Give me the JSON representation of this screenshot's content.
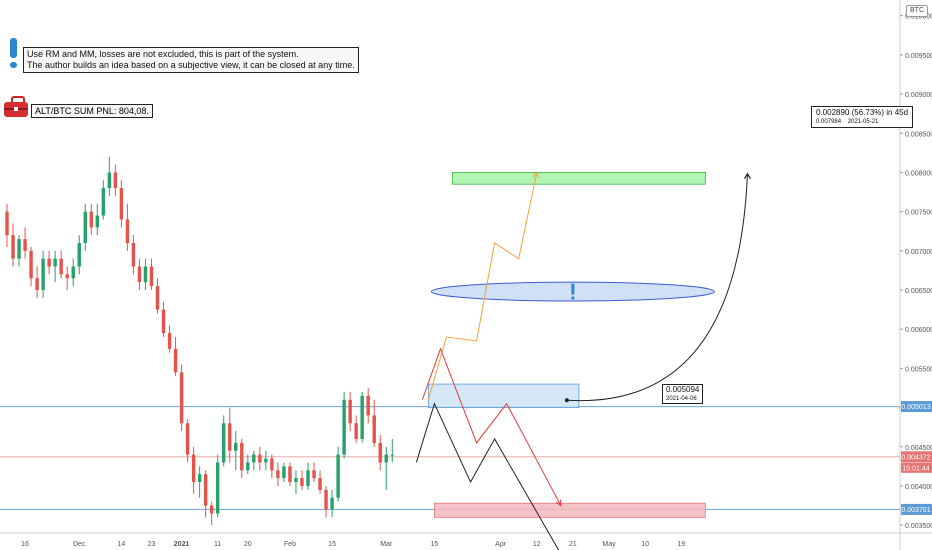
{
  "chart_data": {
    "type": "candlestick",
    "symbol": "BTC",
    "y_range": [
      0.0034,
      0.0102
    ],
    "y_ticks": [
      "0.010000",
      "0.009500",
      "0.009000",
      "0.008500",
      "0.008000",
      "0.007500",
      "0.007000",
      "0.006500",
      "0.006000",
      "0.005500",
      "0.005000",
      "0.004500",
      "0.004000",
      "0.003500"
    ],
    "x_ticks": [
      "16",
      "Dec",
      "14",
      "23",
      "2021",
      "11",
      "20",
      "Feb",
      "15",
      "Mar",
      "15",
      "Apr",
      "12",
      "21",
      "May",
      "10",
      "19"
    ],
    "x_tick_index": [
      3,
      12,
      19,
      24,
      29,
      35,
      40,
      47,
      54,
      63,
      71,
      82,
      88,
      94,
      100,
      106,
      112
    ],
    "candles": [
      [
        0.0075,
        0.0076,
        0.00705,
        0.0072
      ],
      [
        0.0072,
        0.00735,
        0.0068,
        0.0069
      ],
      [
        0.0069,
        0.0072,
        0.0068,
        0.00715
      ],
      [
        0.00715,
        0.0073,
        0.0069,
        0.007
      ],
      [
        0.007,
        0.00705,
        0.00655,
        0.00665
      ],
      [
        0.00665,
        0.0068,
        0.0064,
        0.0065
      ],
      [
        0.0065,
        0.007,
        0.0064,
        0.0069
      ],
      [
        0.0069,
        0.007,
        0.0067,
        0.0068
      ],
      [
        0.0068,
        0.007,
        0.0066,
        0.0069
      ],
      [
        0.0069,
        0.007,
        0.00665,
        0.0067
      ],
      [
        0.0067,
        0.0068,
        0.0065,
        0.00665
      ],
      [
        0.00665,
        0.0069,
        0.00655,
        0.0068
      ],
      [
        0.0068,
        0.0072,
        0.0067,
        0.0071
      ],
      [
        0.0071,
        0.0076,
        0.007,
        0.0075
      ],
      [
        0.0075,
        0.0076,
        0.0072,
        0.0073
      ],
      [
        0.0073,
        0.0076,
        0.0072,
        0.00745
      ],
      [
        0.00745,
        0.0079,
        0.0074,
        0.0078
      ],
      [
        0.0078,
        0.0082,
        0.0077,
        0.008
      ],
      [
        0.008,
        0.0081,
        0.0077,
        0.0078
      ],
      [
        0.0078,
        0.0079,
        0.0073,
        0.0074
      ],
      [
        0.0074,
        0.0076,
        0.007,
        0.0071
      ],
      [
        0.0071,
        0.0072,
        0.0067,
        0.0068
      ],
      [
        0.0068,
        0.0069,
        0.0065,
        0.0066
      ],
      [
        0.0066,
        0.0069,
        0.0065,
        0.0068
      ],
      [
        0.0068,
        0.0069,
        0.0065,
        0.00655
      ],
      [
        0.00655,
        0.00665,
        0.0062,
        0.00625
      ],
      [
        0.00625,
        0.00635,
        0.0059,
        0.00595
      ],
      [
        0.00595,
        0.00605,
        0.0057,
        0.00575
      ],
      [
        0.00575,
        0.0059,
        0.0054,
        0.00545
      ],
      [
        0.00545,
        0.00555,
        0.0047,
        0.0048
      ],
      [
        0.0048,
        0.00485,
        0.0043,
        0.0044
      ],
      [
        0.0044,
        0.0045,
        0.0039,
        0.00405
      ],
      [
        0.00405,
        0.00425,
        0.00385,
        0.00415
      ],
      [
        0.00415,
        0.0042,
        0.0036,
        0.00375
      ],
      [
        0.00375,
        0.0038,
        0.0035,
        0.00365
      ],
      [
        0.00365,
        0.0044,
        0.0036,
        0.0043
      ],
      [
        0.0043,
        0.0049,
        0.00425,
        0.0048
      ],
      [
        0.0048,
        0.005,
        0.0043,
        0.00445
      ],
      [
        0.00445,
        0.0047,
        0.0042,
        0.00455
      ],
      [
        0.00455,
        0.0046,
        0.0041,
        0.0042
      ],
      [
        0.0042,
        0.0044,
        0.00415,
        0.0043
      ],
      [
        0.0043,
        0.00445,
        0.0042,
        0.0044
      ],
      [
        0.0044,
        0.0045,
        0.0042,
        0.0043
      ],
      [
        0.0043,
        0.00445,
        0.0042,
        0.00435
      ],
      [
        0.00435,
        0.0044,
        0.0041,
        0.0042
      ],
      [
        0.0042,
        0.0043,
        0.004,
        0.0041
      ],
      [
        0.0041,
        0.0043,
        0.00405,
        0.00425
      ],
      [
        0.00425,
        0.0043,
        0.004,
        0.00405
      ],
      [
        0.00405,
        0.0042,
        0.0039,
        0.0041
      ],
      [
        0.0041,
        0.0042,
        0.00395,
        0.004
      ],
      [
        0.004,
        0.0043,
        0.00395,
        0.0042
      ],
      [
        0.0042,
        0.0043,
        0.00405,
        0.0041
      ],
      [
        0.0041,
        0.0042,
        0.0039,
        0.00395
      ],
      [
        0.00395,
        0.004,
        0.0036,
        0.0037
      ],
      [
        0.0037,
        0.00395,
        0.0036,
        0.00385
      ],
      [
        0.00385,
        0.0045,
        0.0038,
        0.0044
      ],
      [
        0.0044,
        0.0052,
        0.00435,
        0.0051
      ],
      [
        0.0051,
        0.0052,
        0.0047,
        0.0048
      ],
      [
        0.0048,
        0.0049,
        0.00455,
        0.0046
      ],
      [
        0.0046,
        0.0052,
        0.00455,
        0.00515
      ],
      [
        0.00515,
        0.00525,
        0.0048,
        0.0049
      ],
      [
        0.0049,
        0.0051,
        0.0045,
        0.00455
      ],
      [
        0.00455,
        0.00465,
        0.0042,
        0.0043
      ],
      [
        0.0043,
        0.0045,
        0.00395,
        0.0044
      ],
      [
        0.0044,
        0.0046,
        0.0043,
        0.0044
      ]
    ],
    "h_lines": [
      {
        "price": 0.005013,
        "label": "0.005013",
        "color": "#5b9bd5"
      },
      {
        "price": 0.004372,
        "label": "0.004372",
        "color": "#e57373"
      },
      {
        "price": 0.003701,
        "label": "0.003701",
        "color": "#5b9bd5"
      }
    ],
    "countdown_label": "15:01:44",
    "zones": [
      {
        "x0": 74,
        "x1": 116,
        "y0": 0.00785,
        "y1": 0.008,
        "fill": "#a5f2a5",
        "stroke": "#3cb043"
      },
      {
        "x0": 70,
        "x1": 95,
        "y0": 0.005,
        "y1": 0.0053,
        "fill": "#cfe3f7",
        "stroke": "#5b9bd5"
      },
      {
        "x0": 71,
        "x1": 116,
        "y0": 0.0036,
        "y1": 0.00378,
        "fill": "#f4b8bd",
        "stroke": "#e57373"
      }
    ],
    "ellipse": {
      "cx": 94,
      "cy": 0.00648,
      "rx": 23.5,
      "ry": 0.00012,
      "fill": "#cfe0f7",
      "stroke": "#3b5bd9"
    },
    "paths": [
      {
        "color": "#f5a142",
        "points": [
          [
            70,
            0.0051
          ],
          [
            73,
            0.0059
          ],
          [
            78,
            0.00585
          ],
          [
            81,
            0.0071
          ],
          [
            85,
            0.0069
          ],
          [
            88,
            0.008
          ]
        ]
      },
      {
        "color": "#e53935",
        "points": [
          [
            69,
            0.0051
          ],
          [
            72,
            0.00575
          ],
          [
            78,
            0.00455
          ],
          [
            83,
            0.00505
          ],
          [
            92,
            0.00375
          ]
        ]
      },
      {
        "color": "#222222",
        "points": [
          [
            68,
            0.0043
          ],
          [
            71,
            0.00505
          ],
          [
            77,
            0.00405
          ],
          [
            81,
            0.0046
          ],
          [
            93,
            0.003
          ]
        ]
      }
    ],
    "projection": {
      "from": [
        93,
        0.005094
      ],
      "to": [
        123,
        0.007984
      ],
      "label": "0.002890 (56.73%) in 45d",
      "from_label": "0.005094",
      "from_date": "2021-04-06",
      "to_value": "0.007984",
      "to_date": "2021-05-21"
    }
  },
  "annotations": {
    "note_line1": "Use RM and MM, losses are not excluded, this is part of the system.",
    "note_line2": "The author builds an idea based on a subjective view, it can be closed at any time.",
    "pnl_label": "ALT/BTC SUM PNL: 804,08."
  },
  "colors": {
    "up": "#26a269",
    "down": "#e5534b",
    "bg": "#ffffff"
  }
}
